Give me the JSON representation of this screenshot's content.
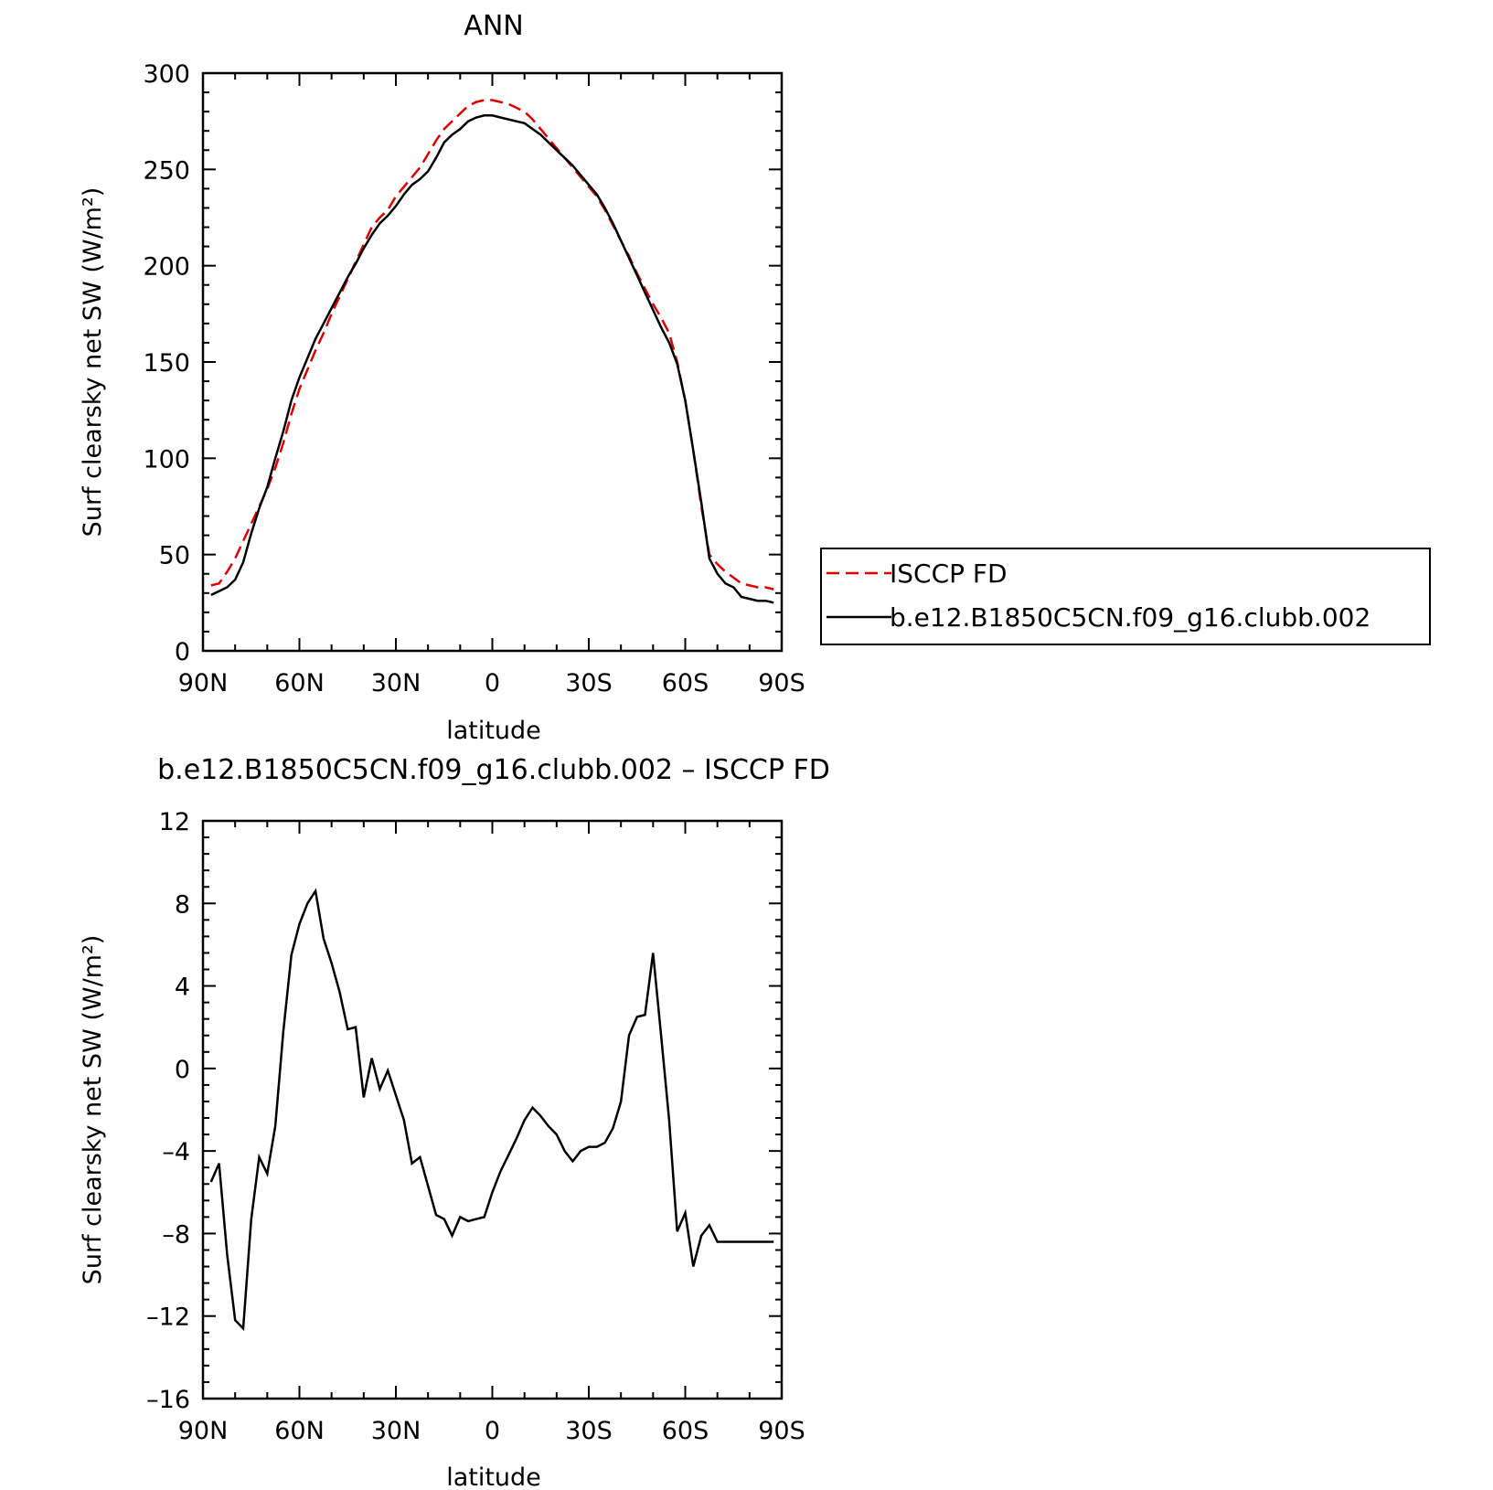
{
  "chart_data": [
    {
      "type": "line",
      "title": "ANN",
      "xlabel": "latitude",
      "ylabel": "Surf clearsky net SW (W/m²)",
      "x_ticks": [
        -90,
        -60,
        -30,
        0,
        30,
        60,
        90
      ],
      "x_tick_labels": [
        "90N",
        "60N",
        "30N",
        "0",
        "30S",
        "60S",
        "90S"
      ],
      "xlim": [
        -90,
        90
      ],
      "ylim": [
        0,
        300
      ],
      "y_ticks": [
        0,
        50,
        100,
        150,
        200,
        250,
        300
      ],
      "y_tick_labels": [
        "0",
        "50",
        "100",
        "150",
        "200",
        "250",
        "300"
      ],
      "grid": false,
      "legend_placement": "right",
      "series": [
        {
          "name": "ISCCP FD",
          "color": "#e00000",
          "dash": "dashed",
          "x": [
            -87.5,
            -85,
            -82.5,
            -80,
            -77.5,
            -75,
            -72.5,
            -70,
            -67.5,
            -65,
            -62.5,
            -60,
            -57.5,
            -55,
            -52.5,
            -50,
            -47.5,
            -45,
            -42.5,
            -40,
            -37.5,
            -35,
            -32.5,
            -30,
            -27.5,
            -25,
            -22.5,
            -20,
            -17.5,
            -15,
            -12.5,
            -10,
            -7.5,
            -5,
            -2.5,
            0,
            2.5,
            5,
            7.5,
            10,
            12.5,
            15,
            17.5,
            20,
            22.5,
            25,
            27.5,
            30,
            32.5,
            35,
            37.5,
            40,
            42.5,
            45,
            47.5,
            50,
            52.5,
            55,
            57.5,
            60,
            62.5,
            65,
            67.5,
            70,
            72.5,
            75,
            77.5,
            80,
            82.5,
            85,
            87.5
          ],
          "y": [
            34,
            35,
            41,
            48,
            57,
            66,
            75,
            84,
            95,
            108,
            123,
            136,
            146,
            156,
            165,
            175,
            184,
            193,
            202,
            211,
            220,
            225,
            229,
            236,
            241,
            246,
            251,
            258,
            265,
            271,
            275,
            279,
            283,
            285,
            286,
            286,
            285,
            284,
            282,
            280,
            276,
            271,
            266,
            261,
            256,
            251,
            246,
            241,
            236,
            229,
            221,
            213,
            205,
            196,
            188,
            180,
            173,
            165,
            150,
            130,
            104,
            75,
            50,
            45,
            41,
            38,
            35,
            34,
            33,
            33,
            32
          ]
        },
        {
          "name": "b.e12.B1850C5CN.f09_g16.clubb.002",
          "color": "#000000",
          "dash": "solid",
          "x": [
            -87.5,
            -85,
            -82.5,
            -80,
            -77.5,
            -75,
            -72.5,
            -70,
            -67.5,
            -65,
            -62.5,
            -60,
            -57.5,
            -55,
            -52.5,
            -50,
            -47.5,
            -45,
            -42.5,
            -40,
            -37.5,
            -35,
            -32.5,
            -30,
            -27.5,
            -25,
            -22.5,
            -20,
            -17.5,
            -15,
            -12.5,
            -10,
            -7.5,
            -5,
            -2.5,
            0,
            2.5,
            5,
            7.5,
            10,
            12.5,
            15,
            17.5,
            20,
            22.5,
            25,
            27.5,
            30,
            32.5,
            35,
            37.5,
            40,
            42.5,
            45,
            47.5,
            50,
            52.5,
            55,
            57.5,
            60,
            62.5,
            65,
            67.5,
            70,
            72.5,
            75,
            77.5,
            80,
            82.5,
            85,
            87.5
          ],
          "y": [
            29,
            31,
            33,
            37,
            46,
            61,
            74,
            85,
            100,
            114,
            130,
            142,
            152,
            162,
            170,
            178,
            186,
            194,
            201,
            209,
            216,
            222,
            226,
            231,
            237,
            242,
            245,
            249,
            256,
            264,
            268,
            271,
            275,
            277,
            278,
            278,
            277,
            276,
            275,
            274,
            271,
            268,
            264,
            260,
            256,
            252,
            247,
            242,
            237,
            230,
            222,
            213,
            204,
            195,
            186,
            177,
            168,
            160,
            149,
            130,
            104,
            77,
            48,
            40,
            35,
            33,
            28,
            27,
            26,
            26,
            25
          ]
        }
      ]
    },
    {
      "type": "line",
      "title": "b.e12.B1850C5CN.f09_g16.clubb.002 – ISCCP FD",
      "xlabel": "latitude",
      "ylabel": "Surf clearsky net SW (W/m²)",
      "x_ticks": [
        -90,
        -60,
        -30,
        0,
        30,
        60,
        90
      ],
      "x_tick_labels": [
        "90N",
        "60N",
        "30N",
        "0",
        "30S",
        "60S",
        "90S"
      ],
      "xlim": [
        -90,
        90
      ],
      "ylim": [
        -16,
        12
      ],
      "y_ticks": [
        -16,
        -12,
        -8,
        -4,
        0,
        4,
        8,
        12
      ],
      "y_tick_labels": [
        "–16",
        "–12",
        "–8",
        "–4",
        "0",
        "4",
        "8",
        "12"
      ],
      "grid": false,
      "series": [
        {
          "color": "#000000",
          "dash": "solid",
          "x": [
            -87.5,
            -85,
            -82.5,
            -80,
            -77.5,
            -75,
            -72.5,
            -70,
            -67.5,
            -65,
            -62.5,
            -60,
            -57.5,
            -55,
            -52.5,
            -50,
            -47.5,
            -45,
            -42.5,
            -40,
            -37.5,
            -35,
            -32.5,
            -30,
            -27.5,
            -25,
            -22.5,
            -20,
            -17.5,
            -15,
            -12.5,
            -10,
            -7.5,
            -5,
            -2.5,
            0,
            2.5,
            5,
            7.5,
            10,
            12.5,
            15,
            17.5,
            20,
            22.5,
            25,
            27.5,
            30,
            32.5,
            35,
            37.5,
            40,
            42.5,
            45,
            47.5,
            50,
            52.5,
            55,
            57.5,
            60,
            62.5,
            65,
            67.5,
            70,
            72.5,
            75,
            77.5,
            80,
            82.5,
            85,
            87.5
          ],
          "y": [
            -5.5,
            -4.6,
            -9.0,
            -12.2,
            -12.6,
            -7.3,
            -4.3,
            -5.1,
            -2.8,
            1.8,
            5.5,
            7.0,
            8.0,
            8.6,
            6.3,
            5.1,
            3.7,
            1.9,
            2.0,
            -1.4,
            0.5,
            -1.0,
            -0.1,
            -1.3,
            -2.5,
            -4.6,
            -4.3,
            -5.7,
            -7.1,
            -7.3,
            -8.1,
            -7.2,
            -7.4,
            -7.3,
            -7.2,
            -6.0,
            -5.0,
            -4.2,
            -3.4,
            -2.5,
            -1.9,
            -2.3,
            -2.8,
            -3.2,
            -4.0,
            -4.5,
            -4.0,
            -3.8,
            -3.8,
            -3.6,
            -2.9,
            -1.6,
            1.6,
            2.5,
            2.6,
            5.6,
            1.6,
            -2.5,
            -7.9,
            -7.0,
            -9.6,
            -8.1,
            -7.6,
            -8.4,
            -8.4,
            -8.4,
            -8.4,
            -8.4,
            -8.4,
            -8.4,
            -8.4
          ]
        }
      ]
    }
  ]
}
